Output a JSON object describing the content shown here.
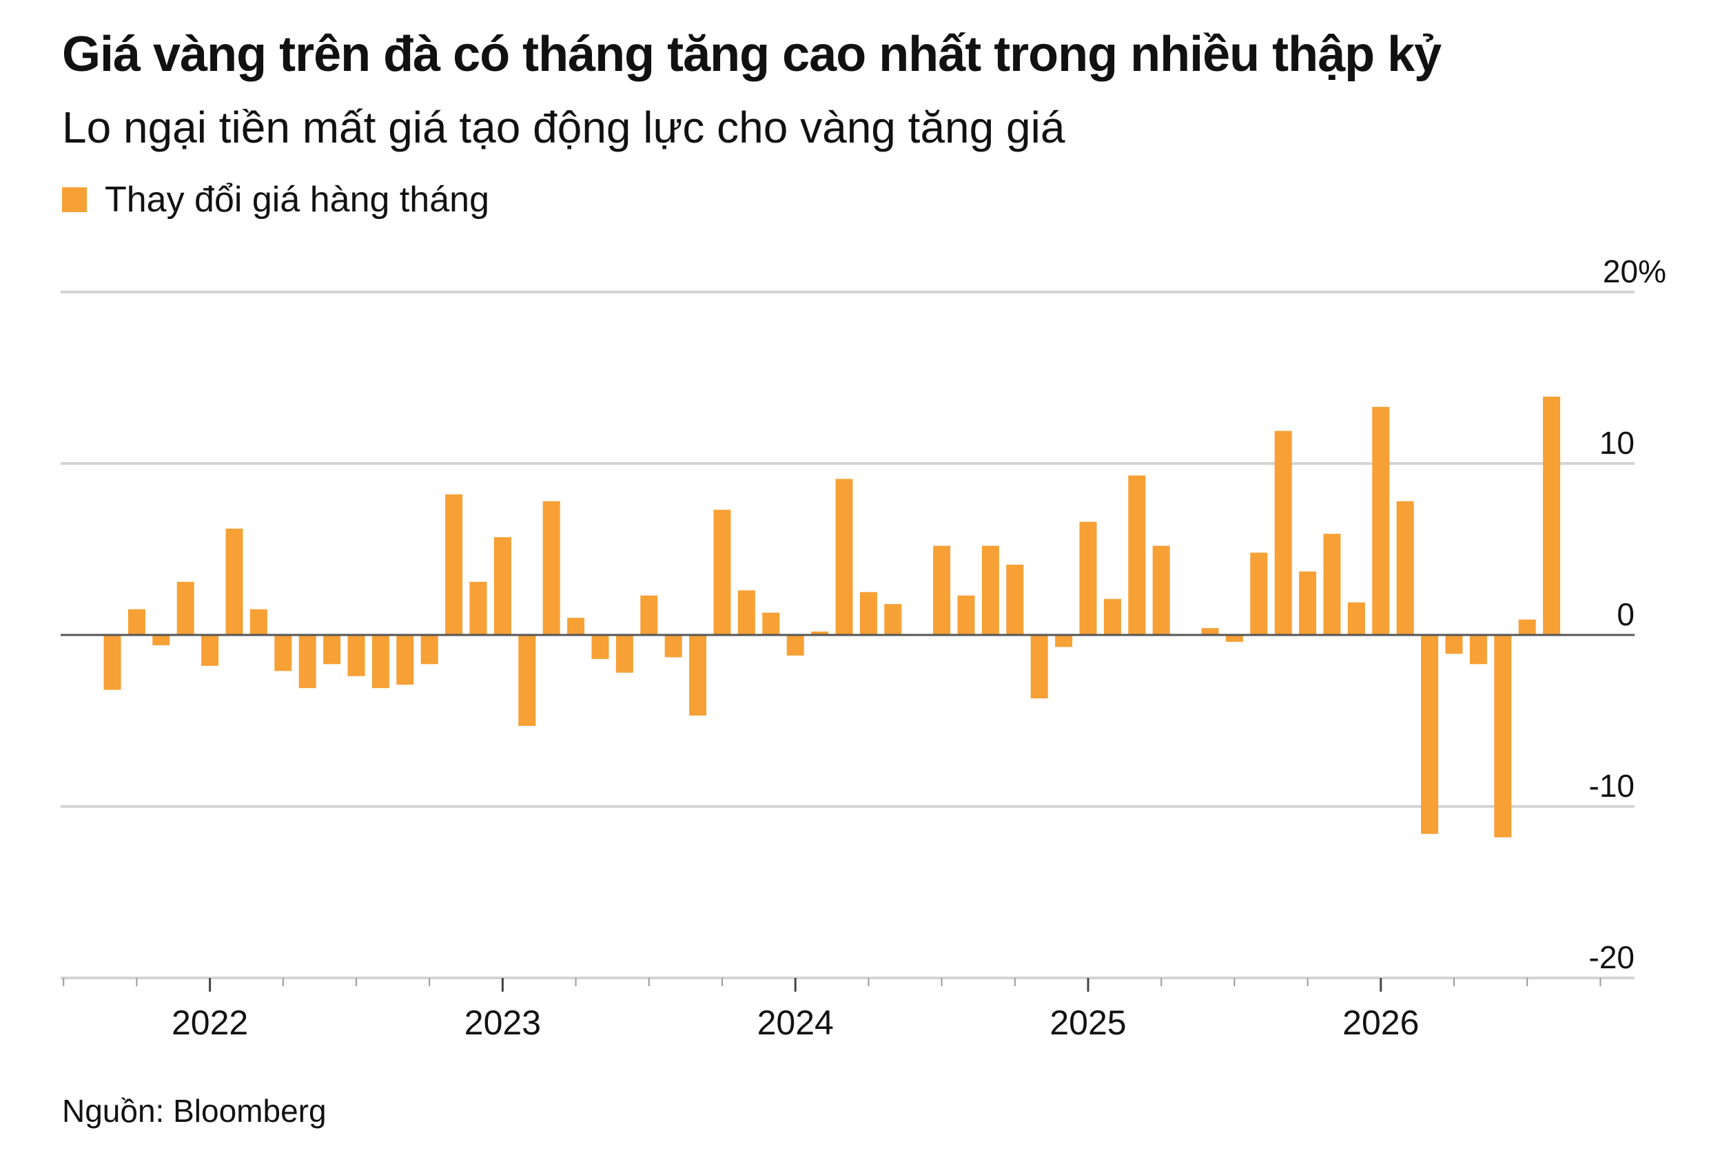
{
  "title": "Giá vàng trên đà có tháng tăng cao nhất trong nhiều thập kỷ",
  "subtitle": "Lo ngại tiền mất giá tạo động lực cho vàng tăng giá",
  "legend": {
    "label": "Thay đổi giá hàng tháng"
  },
  "source": "Nguồn: Bloomberg",
  "colors": {
    "bar": "#F7A035",
    "grid": "#d4d4d4",
    "zero": "#555555",
    "text": "#111111"
  },
  "chart_data": {
    "type": "bar",
    "ylim": [
      -20,
      20
    ],
    "yticks": [
      {
        "value": 20,
        "label": "20%"
      },
      {
        "value": 10,
        "label": "10"
      },
      {
        "value": 0,
        "label": "0"
      },
      {
        "value": -10,
        "label": "-10"
      },
      {
        "value": -20,
        "label": "-20"
      }
    ],
    "grid": true,
    "legend_position": "top-left",
    "xtick_labels": [
      {
        "index": 4,
        "label": "2022"
      },
      {
        "index": 16,
        "label": "2023"
      },
      {
        "index": 28,
        "label": "2024"
      },
      {
        "index": 40,
        "label": "2025"
      },
      {
        "index": 52,
        "label": "2026"
      }
    ],
    "series": [
      {
        "name": "Thay đổi giá hàng tháng",
        "values": [
          -3.2,
          1.5,
          -0.6,
          3.1,
          -1.8,
          6.2,
          1.5,
          -2.1,
          -3.1,
          -1.7,
          -2.4,
          -3.1,
          -2.9,
          -1.7,
          8.2,
          3.1,
          5.7,
          -5.3,
          7.8,
          1.0,
          -1.4,
          -2.2,
          2.3,
          -1.3,
          -4.7,
          7.3,
          2.6,
          1.3,
          -1.2,
          0.2,
          9.1,
          2.5,
          1.8,
          0,
          5.2,
          2.3,
          5.2,
          4.1,
          -3.7,
          -0.7,
          6.6,
          2.1,
          9.3,
          5.2,
          0,
          0.4,
          -0.4,
          4.8,
          11.9,
          3.7,
          5.9,
          1.9,
          13.3,
          7.8,
          -11.6,
          -1.1,
          -1.7,
          -11.8,
          0.9,
          13.9
        ]
      }
    ]
  }
}
